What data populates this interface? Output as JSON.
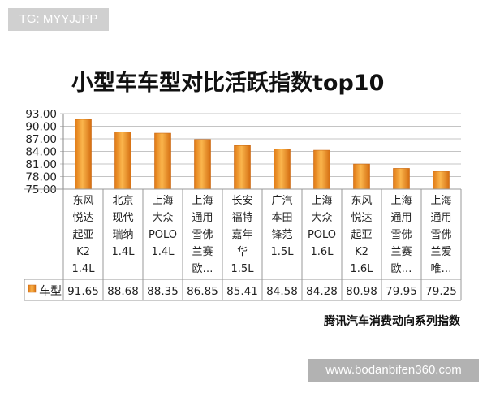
{
  "watermark_top": "TG: MYYJJPP",
  "watermark_bottom": "www.bodanbifen360.com",
  "colors": {
    "bar_top": "#f7b34a",
    "bar_bottom": "#dd7312",
    "bar_edge": "#c86612",
    "grid": "#bfbfbf",
    "text": "#222222"
  },
  "chart_data": {
    "type": "bar",
    "title": "小型车车型对比活跃指数top10",
    "source": "腾讯汽车消费动向系列指数",
    "ylim": [
      75.0,
      93.0
    ],
    "yticks": [
      "93.00",
      "90.00",
      "87.00",
      "84.00",
      "81.00",
      "78.00",
      "75.00"
    ],
    "categories": [
      [
        "东风",
        "悦达",
        "起亚",
        "K2",
        "1.4L"
      ],
      [
        "北京",
        "现代",
        "瑞纳",
        "1.4L"
      ],
      [
        "上海",
        "大众",
        "POLO",
        "1.4L"
      ],
      [
        "上海",
        "通用",
        "雪佛",
        "兰赛",
        "欧…"
      ],
      [
        "长安",
        "福特",
        "嘉年",
        "华",
        "1.5L"
      ],
      [
        "广汽",
        "本田",
        "锋范",
        "1.5L"
      ],
      [
        "上海",
        "大众",
        "POLO",
        "1.6L"
      ],
      [
        "东风",
        "悦达",
        "起亚",
        "K2",
        "1.6L"
      ],
      [
        "上海",
        "通用",
        "雪佛",
        "兰赛",
        "欧…"
      ],
      [
        "上海",
        "通用",
        "雪佛",
        "兰爱",
        "唯…"
      ]
    ],
    "series": [
      {
        "name": "车型",
        "values": [
          91.65,
          88.68,
          88.35,
          86.85,
          85.41,
          84.58,
          84.28,
          80.98,
          79.95,
          79.25
        ],
        "labels": [
          "91.65",
          "88.68",
          "88.35",
          "86.85",
          "85.41",
          "84.58",
          "84.28",
          "80.98",
          "79.95",
          "79.25"
        ]
      }
    ]
  }
}
